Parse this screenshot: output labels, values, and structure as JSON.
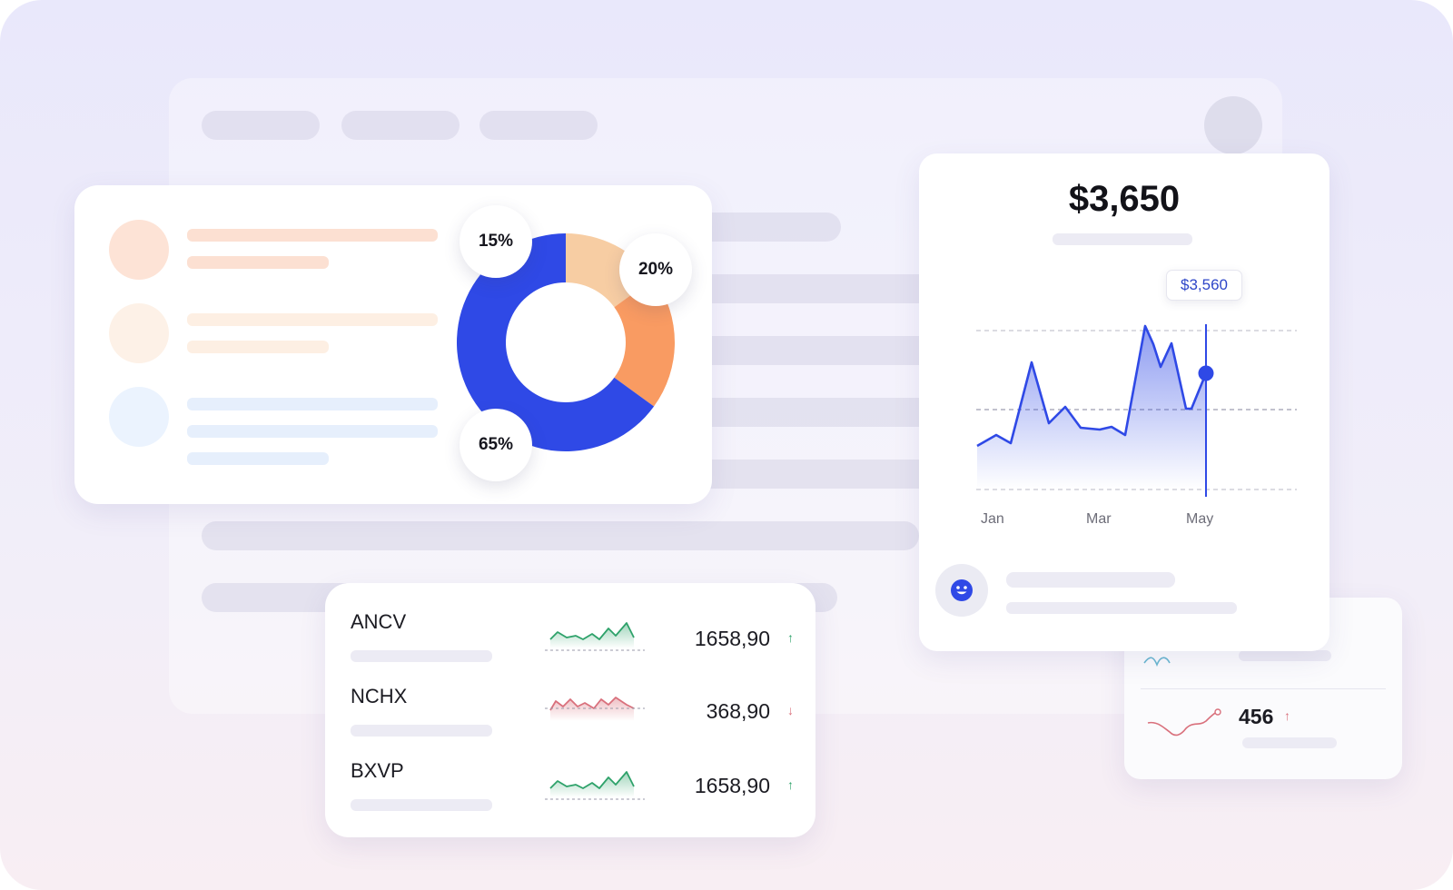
{
  "colors": {
    "brand_blue": "#2f49e6",
    "orange": "#f99b62",
    "peach": "#f7cda3",
    "up_green": "#2ea26a",
    "down_red": "#d9707c"
  },
  "donut_card": {
    "chart_data": {
      "type": "pie",
      "slices": [
        {
          "label": "15%",
          "value": 15,
          "color": "#f7cda3"
        },
        {
          "label": "20%",
          "value": 20,
          "color": "#f99b62"
        },
        {
          "label": "65%",
          "value": 65,
          "color": "#2f49e6"
        }
      ]
    }
  },
  "price_card": {
    "price": "$3,650",
    "tooltip": "$3,560",
    "months": [
      "Jan",
      "Mar",
      "May"
    ],
    "icon": "smiley-icon"
  },
  "stocks": [
    {
      "ticker": "ANCV",
      "value": "1658,90",
      "arrow": "↑",
      "trend": "up",
      "sparkline": "up"
    },
    {
      "ticker": "NCHX",
      "value": "368,90",
      "arrow": "↓",
      "trend": "down",
      "sparkline": "down"
    },
    {
      "ticker": "BXVP",
      "value": "1658,90",
      "arrow": "↑",
      "trend": "up",
      "sparkline": "up"
    }
  ],
  "mini_card": {
    "value": "456",
    "arrow": "↑"
  }
}
